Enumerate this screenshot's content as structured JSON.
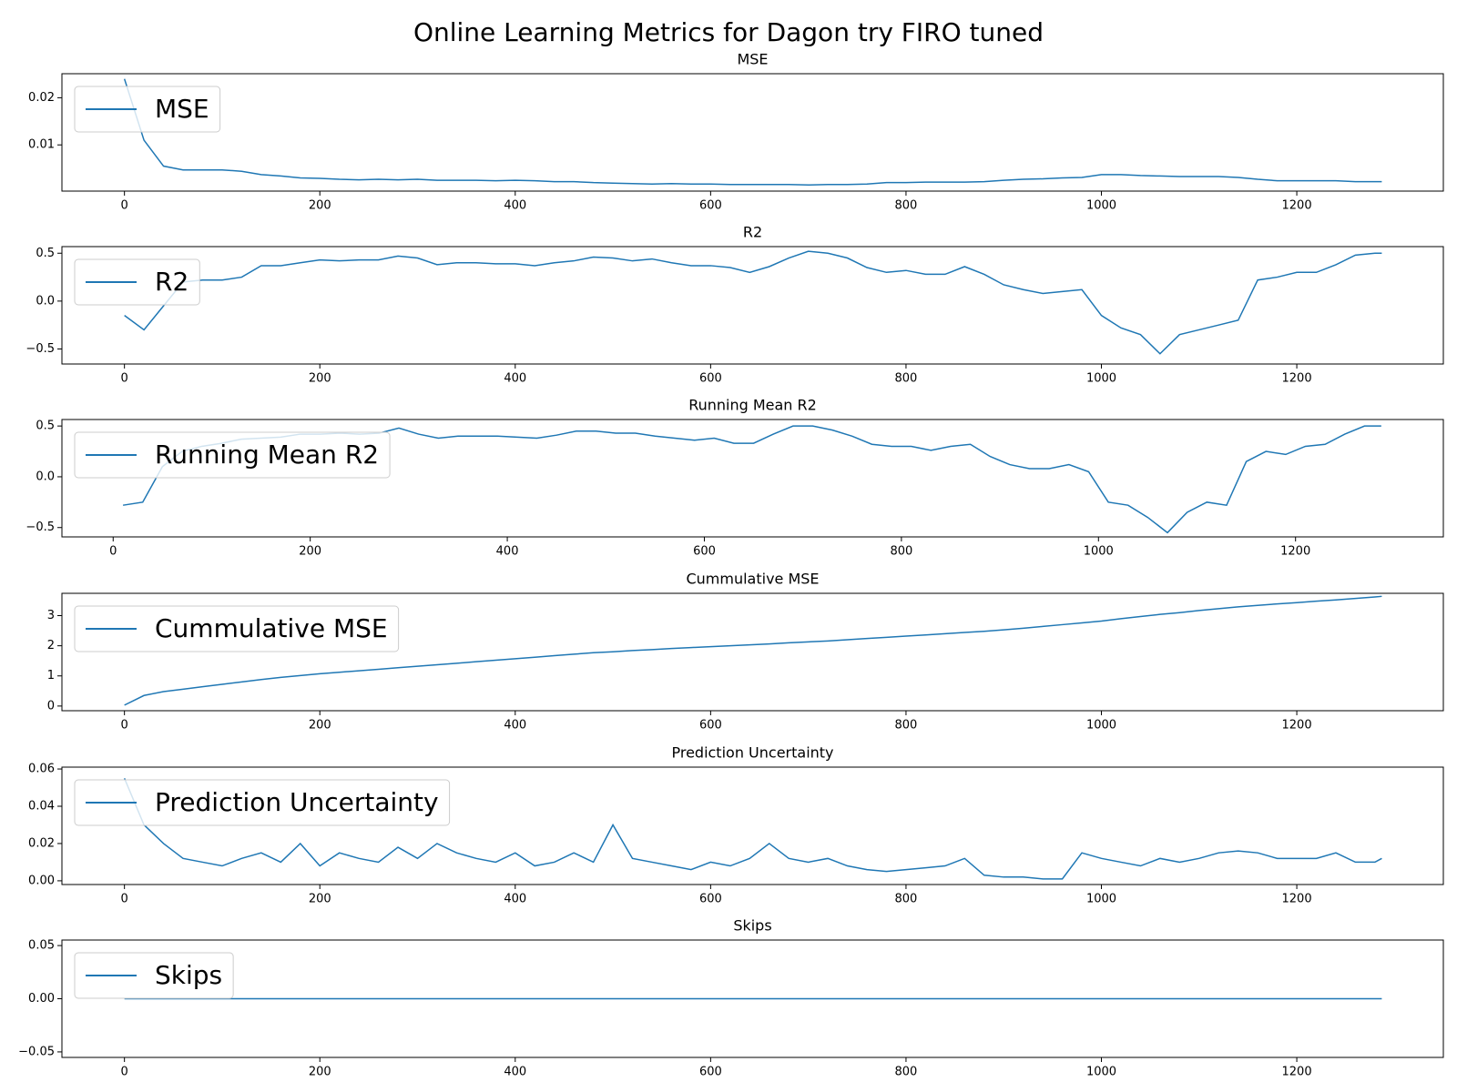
{
  "title": "Online Learning Metrics for Dagon try FIRO tuned",
  "chart_data": [
    {
      "type": "line",
      "title": "MSE",
      "legend": "upper left",
      "x": [
        0,
        20,
        40,
        60,
        80,
        100,
        120,
        140,
        160,
        180,
        200,
        220,
        240,
        260,
        280,
        300,
        320,
        340,
        360,
        380,
        400,
        420,
        440,
        460,
        480,
        500,
        520,
        540,
        560,
        580,
        600,
        620,
        640,
        660,
        680,
        700,
        720,
        740,
        760,
        780,
        800,
        820,
        840,
        860,
        880,
        900,
        920,
        940,
        960,
        980,
        1000,
        1020,
        1040,
        1060,
        1080,
        1100,
        1120,
        1140,
        1160,
        1180,
        1200,
        1220,
        1240,
        1260,
        1280,
        1287
      ],
      "series": [
        {
          "name": "MSE",
          "color": "#1f77b4",
          "values": [
            0.024,
            0.011,
            0.0055,
            0.0047,
            0.0047,
            0.0047,
            0.0044,
            0.0037,
            0.0034,
            0.003,
            0.0029,
            0.0027,
            0.0026,
            0.0027,
            0.0026,
            0.0027,
            0.0025,
            0.0025,
            0.0025,
            0.0024,
            0.0025,
            0.0024,
            0.0022,
            0.0022,
            0.002,
            0.0019,
            0.0018,
            0.0017,
            0.0018,
            0.0017,
            0.0017,
            0.0016,
            0.0016,
            0.0016,
            0.0016,
            0.0015,
            0.0016,
            0.0016,
            0.0017,
            0.002,
            0.002,
            0.0021,
            0.0021,
            0.0021,
            0.0022,
            0.0025,
            0.0027,
            0.0028,
            0.003,
            0.0031,
            0.0037,
            0.0037,
            0.0035,
            0.0034,
            0.0033,
            0.0033,
            0.0033,
            0.0031,
            0.0027,
            0.0024,
            0.0024,
            0.0024,
            0.0024,
            0.0022,
            0.0022,
            0.0022
          ]
        }
      ],
      "xlim": [
        -64,
        1350
      ],
      "ylim": [
        0.0002,
        0.0251
      ],
      "xticks": [
        0,
        200,
        400,
        600,
        800,
        1000,
        1200
      ],
      "yticks": [
        0.01,
        0.02
      ]
    },
    {
      "type": "line",
      "title": "R2",
      "legend": "upper left",
      "x": [
        0,
        20,
        40,
        60,
        80,
        100,
        120,
        140,
        160,
        180,
        200,
        220,
        240,
        260,
        280,
        300,
        320,
        340,
        360,
        380,
        400,
        420,
        440,
        460,
        480,
        500,
        520,
        540,
        560,
        580,
        600,
        620,
        640,
        660,
        680,
        700,
        720,
        740,
        760,
        780,
        800,
        820,
        840,
        860,
        880,
        900,
        920,
        940,
        960,
        980,
        1000,
        1020,
        1040,
        1060,
        1080,
        1100,
        1120,
        1140,
        1160,
        1180,
        1200,
        1220,
        1240,
        1260,
        1280,
        1287
      ],
      "series": [
        {
          "name": "R2",
          "color": "#1f77b4",
          "values": [
            -0.15,
            -0.3,
            -0.05,
            0.2,
            0.22,
            0.22,
            0.25,
            0.37,
            0.37,
            0.4,
            0.43,
            0.42,
            0.43,
            0.43,
            0.47,
            0.45,
            0.38,
            0.4,
            0.4,
            0.39,
            0.39,
            0.37,
            0.4,
            0.42,
            0.46,
            0.45,
            0.42,
            0.44,
            0.4,
            0.37,
            0.37,
            0.35,
            0.3,
            0.36,
            0.45,
            0.52,
            0.5,
            0.45,
            0.35,
            0.3,
            0.32,
            0.28,
            0.28,
            0.36,
            0.28,
            0.17,
            0.12,
            0.08,
            0.1,
            0.12,
            -0.15,
            -0.28,
            -0.35,
            -0.55,
            -0.35,
            -0.3,
            -0.25,
            -0.2,
            0.22,
            0.25,
            0.3,
            0.3,
            0.38,
            0.48,
            0.5,
            0.5
          ]
        }
      ],
      "xlim": [
        -64,
        1350
      ],
      "ylim": [
        -0.657,
        0.569
      ],
      "xticks": [
        0,
        200,
        400,
        600,
        800,
        1000,
        1200
      ],
      "yticks": [
        {
          "value": -0.5,
          "label": "−0.5"
        },
        {
          "value": 0,
          "label": "0.0"
        },
        0.5
      ]
    },
    {
      "type": "line",
      "title": "Running Mean R2",
      "legend": "upper left",
      "x": [
        10,
        30,
        50,
        70,
        90,
        110,
        130,
        150,
        170,
        190,
        210,
        230,
        250,
        270,
        290,
        310,
        330,
        350,
        370,
        390,
        410,
        430,
        450,
        470,
        490,
        510,
        530,
        550,
        570,
        590,
        610,
        630,
        650,
        670,
        690,
        710,
        730,
        750,
        770,
        790,
        810,
        830,
        850,
        870,
        890,
        910,
        930,
        950,
        970,
        990,
        1010,
        1030,
        1050,
        1070,
        1090,
        1110,
        1130,
        1150,
        1170,
        1190,
        1210,
        1230,
        1250,
        1270,
        1287
      ],
      "series": [
        {
          "name": "Running Mean R2",
          "color": "#1f77b4",
          "values": [
            -0.28,
            -0.25,
            0.1,
            0.25,
            0.3,
            0.33,
            0.37,
            0.38,
            0.39,
            0.42,
            0.42,
            0.43,
            0.42,
            0.43,
            0.48,
            0.42,
            0.38,
            0.4,
            0.4,
            0.4,
            0.39,
            0.38,
            0.41,
            0.45,
            0.45,
            0.43,
            0.43,
            0.4,
            0.38,
            0.36,
            0.38,
            0.33,
            0.33,
            0.42,
            0.5,
            0.5,
            0.46,
            0.4,
            0.32,
            0.3,
            0.3,
            0.26,
            0.3,
            0.32,
            0.2,
            0.12,
            0.08,
            0.08,
            0.12,
            0.05,
            -0.25,
            -0.28,
            -0.4,
            -0.55,
            -0.35,
            -0.25,
            -0.28,
            0.15,
            0.25,
            0.22,
            0.3,
            0.32,
            0.42,
            0.5,
            0.5
          ]
        }
      ],
      "xlim": [
        -52,
        1350
      ],
      "ylim": [
        -0.592,
        0.564
      ],
      "xticks": [
        0,
        200,
        400,
        600,
        800,
        1000,
        1200
      ],
      "yticks": [
        {
          "value": -0.5,
          "label": "−0.5"
        },
        {
          "value": 0,
          "label": "0.0"
        },
        0.5
      ]
    },
    {
      "type": "line",
      "title": "Cummulative MSE",
      "legend": "upper left",
      "x": [
        0,
        20,
        40,
        60,
        80,
        100,
        120,
        140,
        160,
        180,
        200,
        220,
        240,
        260,
        280,
        300,
        320,
        340,
        360,
        380,
        400,
        420,
        440,
        460,
        480,
        500,
        520,
        540,
        560,
        580,
        600,
        620,
        640,
        660,
        680,
        700,
        720,
        740,
        760,
        780,
        800,
        820,
        840,
        860,
        880,
        900,
        920,
        940,
        960,
        980,
        1000,
        1020,
        1040,
        1060,
        1080,
        1100,
        1120,
        1140,
        1160,
        1180,
        1200,
        1220,
        1240,
        1260,
        1280,
        1287
      ],
      "series": [
        {
          "name": "Cummulative MSE",
          "color": "#1f77b4",
          "values": [
            0.03,
            0.35,
            0.48,
            0.56,
            0.64,
            0.72,
            0.8,
            0.88,
            0.95,
            1.01,
            1.07,
            1.12,
            1.17,
            1.22,
            1.27,
            1.32,
            1.37,
            1.42,
            1.47,
            1.52,
            1.57,
            1.62,
            1.67,
            1.72,
            1.77,
            1.8,
            1.84,
            1.87,
            1.91,
            1.94,
            1.97,
            2.0,
            2.03,
            2.06,
            2.1,
            2.13,
            2.16,
            2.2,
            2.24,
            2.28,
            2.32,
            2.36,
            2.4,
            2.44,
            2.48,
            2.53,
            2.58,
            2.64,
            2.7,
            2.76,
            2.82,
            2.9,
            2.97,
            3.04,
            3.1,
            3.17,
            3.23,
            3.29,
            3.34,
            3.39,
            3.43,
            3.48,
            3.52,
            3.57,
            3.62,
            3.64
          ]
        }
      ],
      "xlim": [
        -64,
        1350
      ],
      "ylim": [
        -0.155,
        3.74
      ],
      "xticks": [
        0,
        200,
        400,
        600,
        800,
        1000,
        1200
      ],
      "yticks": [
        0,
        1,
        2,
        3
      ]
    },
    {
      "type": "line",
      "title": "Prediction Uncertainty",
      "legend": "upper left",
      "x": [
        0,
        20,
        40,
        60,
        80,
        100,
        120,
        140,
        160,
        180,
        200,
        220,
        240,
        260,
        280,
        300,
        320,
        340,
        360,
        380,
        400,
        420,
        440,
        460,
        480,
        500,
        520,
        540,
        560,
        580,
        600,
        620,
        640,
        660,
        680,
        700,
        720,
        740,
        760,
        780,
        800,
        820,
        840,
        860,
        880,
        900,
        920,
        940,
        960,
        980,
        1000,
        1020,
        1040,
        1060,
        1080,
        1100,
        1120,
        1140,
        1160,
        1180,
        1200,
        1220,
        1240,
        1260,
        1280,
        1287
      ],
      "series": [
        {
          "name": "Prediction Uncertainty",
          "color": "#1f77b4",
          "values": [
            0.055,
            0.03,
            0.02,
            0.012,
            0.01,
            0.008,
            0.012,
            0.015,
            0.01,
            0.02,
            0.008,
            0.015,
            0.012,
            0.01,
            0.018,
            0.012,
            0.02,
            0.015,
            0.012,
            0.01,
            0.015,
            0.008,
            0.01,
            0.015,
            0.01,
            0.03,
            0.012,
            0.01,
            0.008,
            0.006,
            0.01,
            0.008,
            0.012,
            0.02,
            0.012,
            0.01,
            0.012,
            0.008,
            0.006,
            0.005,
            0.006,
            0.007,
            0.008,
            0.012,
            0.003,
            0.002,
            0.002,
            0.001,
            0.001,
            0.015,
            0.012,
            0.01,
            0.008,
            0.012,
            0.01,
            0.012,
            0.015,
            0.016,
            0.015,
            0.012,
            0.012,
            0.012,
            0.015,
            0.01,
            0.01,
            0.012
          ]
        }
      ],
      "xlim": [
        -64,
        1350
      ],
      "ylim": [
        -0.002,
        0.061
      ],
      "xticks": [
        0,
        200,
        400,
        600,
        800,
        1000,
        1200
      ],
      "yticks": [
        {
          "value": 0,
          "label": "0.00"
        },
        0.02,
        0.04,
        0.06
      ]
    },
    {
      "type": "line",
      "title": "Skips",
      "legend": "upper left",
      "x": [
        0,
        1287
      ],
      "series": [
        {
          "name": "Skips",
          "color": "#1f77b4",
          "values": [
            0,
            0
          ]
        }
      ],
      "xlim": [
        -64,
        1350
      ],
      "ylim": [
        -0.0552,
        0.0552
      ],
      "xticks": [
        0,
        200,
        400,
        600,
        800,
        1000,
        1200
      ],
      "yticks": [
        {
          "value": -0.05,
          "label": "−0.05"
        },
        {
          "value": 0,
          "label": "0.00"
        },
        0.05
      ]
    }
  ]
}
